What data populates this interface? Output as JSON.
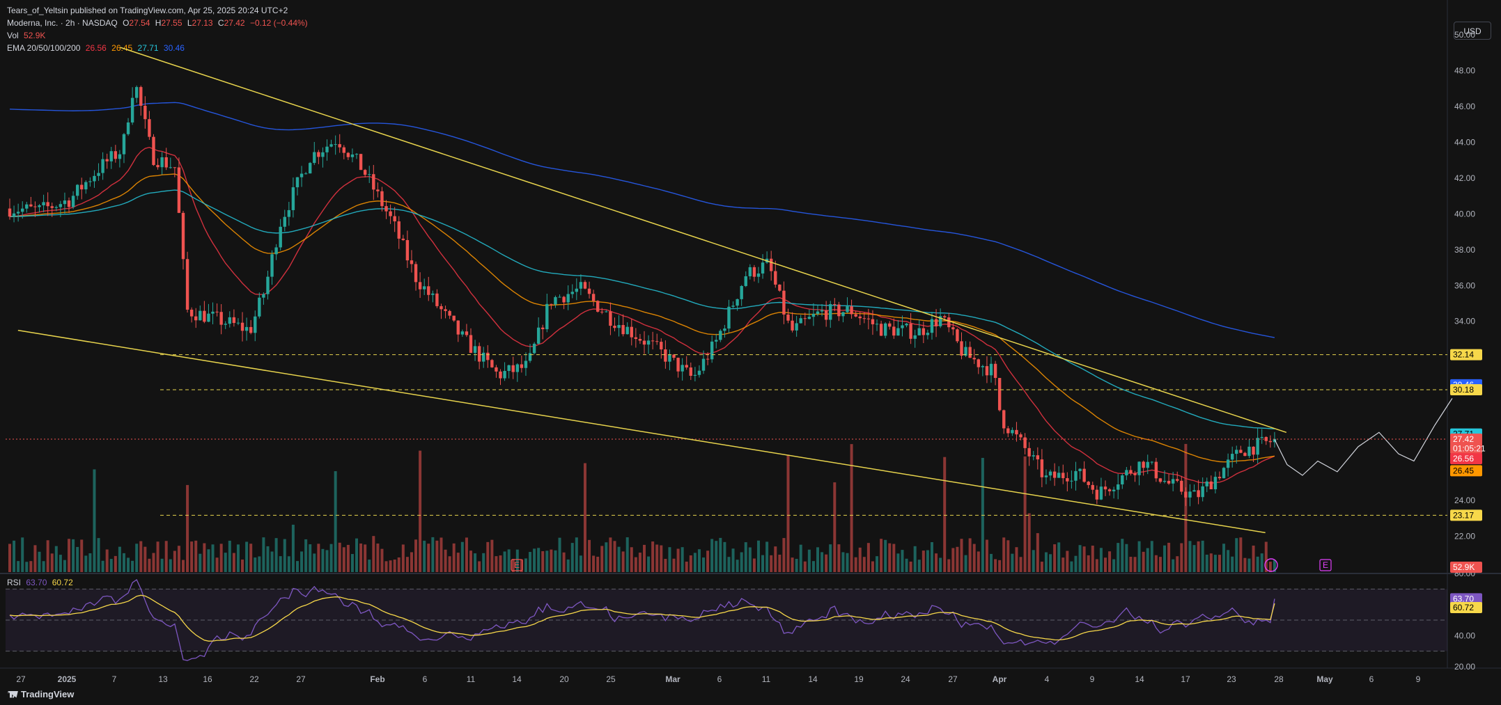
{
  "publish_line": "Tears_of_Yeltsin published on TradingView.com, Apr 25, 2025 20:24 UTC+2",
  "symbol": {
    "name": "Moderna, Inc. · 2h · NASDAQ",
    "o_label": "O",
    "o": "27.54",
    "h_label": "H",
    "h": "27.55",
    "l_label": "L",
    "l": "27.13",
    "c_label": "C",
    "c": "27.42",
    "change": "−0.12 (−0.44%)"
  },
  "vol": {
    "label": "Vol",
    "value": "52.9K"
  },
  "ema": {
    "label": "EMA 20/50/100/200",
    "v20": "26.56",
    "v50": "26.45",
    "v100": "27.71",
    "v200": "30.46"
  },
  "rsi": {
    "label": "RSI",
    "v1": "63.70",
    "v2": "60.72"
  },
  "currency": "USD",
  "brand": "TradingView",
  "colors": {
    "bg": "#131313",
    "up": "#26a69a",
    "down": "#ef5350",
    "ema20": "#f23645",
    "ema50": "#ff9800",
    "ema100": "#26c6da",
    "ema200": "#2962ff",
    "trend": "#e8d44d",
    "rsi": "#7e57c2"
  },
  "chart_data": {
    "type": "candlestick",
    "price_axis": {
      "min": 20,
      "max": 50,
      "ticks": [
        "50.00",
        "48.00",
        "46.00",
        "44.00",
        "42.00",
        "40.00",
        "38.00",
        "36.00",
        "34.00",
        "24.00",
        "22.00"
      ]
    },
    "rsi_axis": {
      "min": 20,
      "max": 80,
      "ticks": [
        "80.00",
        "40.00",
        "20.00"
      ]
    },
    "x_labels": [
      "27",
      "2025",
      "7",
      "13",
      "16",
      "22",
      "27",
      "Feb",
      "6",
      "11",
      "14",
      "20",
      "25",
      "Mar",
      "6",
      "11",
      "14",
      "19",
      "24",
      "27",
      "Apr",
      "4",
      "9",
      "14",
      "17",
      "23",
      "28",
      "May",
      "6",
      "9"
    ],
    "price_tags": [
      {
        "value": "32.14",
        "price": 32.14,
        "color": "#f7d84a",
        "text_color": "#000000"
      },
      {
        "value": "30.46",
        "price": 30.46,
        "color": "#2962ff",
        "text_color": "#ffffff"
      },
      {
        "value": "30.18",
        "price": 30.18,
        "color": "#f7d84a",
        "text_color": "#000000"
      },
      {
        "value": "27.71",
        "price": 27.71,
        "color": "#26c6da",
        "text_color": "#000000"
      },
      {
        "value": "27.42",
        "price": 27.42,
        "color": "#ef5350",
        "text_color": "#ffffff"
      },
      {
        "value": "01:05:21",
        "price": 26.9,
        "color": "#ef5350",
        "text_color": "#ffffff"
      },
      {
        "value": "26.56",
        "price": 26.33,
        "color": "#f23645",
        "text_color": "#ffffff"
      },
      {
        "value": "26.45",
        "price": 25.66,
        "color": "#ff9800",
        "text_color": "#000000"
      },
      {
        "value": "23.17",
        "price": 23.17,
        "color": "#f7d84a",
        "text_color": "#000000"
      }
    ],
    "vol_tag": "52.9K",
    "rsi_tags": [
      {
        "value": "63.70",
        "rsi": 63.7,
        "color": "#7e57c2"
      },
      {
        "value": "60.72",
        "rsi": 60.72,
        "color": "#f7d84a"
      }
    ],
    "hlines": [
      32.14,
      30.18,
      23.17
    ],
    "trendlines": [
      {
        "from": [
          0.08,
          49.3
        ],
        "to": [
          0.857,
          27.8
        ]
      },
      {
        "from": [
          0.012,
          33.5
        ],
        "to": [
          0.843,
          22.2
        ]
      }
    ],
    "events": [
      "E",
      "E"
    ]
  }
}
